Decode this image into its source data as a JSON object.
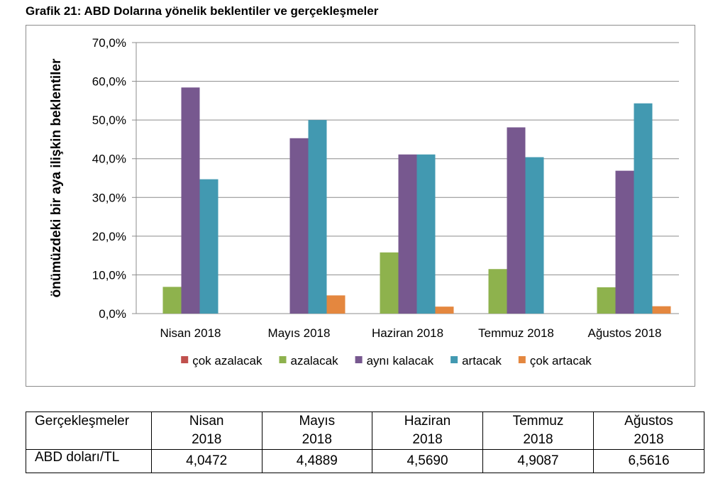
{
  "title": "Grafik 21: ABD Dolarına yönelik beklentiler ve gerçekleşmeler",
  "chart_data": {
    "type": "bar",
    "title": "Grafik 21: ABD Dolarına yönelik beklentiler ve gerçekleşmeler",
    "xlabel": "",
    "ylabel": "önümüzdeki bir aya ilişkin beklentiler",
    "ylim": [
      0,
      70
    ],
    "yticks": [
      "0,0%",
      "10,0%",
      "20,0%",
      "30,0%",
      "40,0%",
      "50,0%",
      "60,0%",
      "70,0%"
    ],
    "categories": [
      "Nisan 2018",
      "Mayıs 2018",
      "Haziran 2018",
      "Temmuz 2018",
      "Ağustos 2018"
    ],
    "grid": true,
    "legend_position": "bottom",
    "series": [
      {
        "name": "çok azalacak",
        "color": "#c0504d",
        "values": [
          0,
          0,
          0,
          0,
          0
        ]
      },
      {
        "name": "azalacak",
        "color": "#8eb24d",
        "values": [
          6.9,
          0,
          15.8,
          11.5,
          6.8
        ]
      },
      {
        "name": "aynı kalacak",
        "color": "#77588f",
        "values": [
          58.4,
          45.3,
          41.1,
          48.1,
          36.9
        ]
      },
      {
        "name": "artacak",
        "color": "#4299b1",
        "values": [
          34.7,
          50.0,
          41.1,
          40.4,
          54.3
        ]
      },
      {
        "name": "çok artacak",
        "color": "#e4873f",
        "values": [
          0,
          4.7,
          1.8,
          0,
          1.9
        ]
      }
    ]
  },
  "table": {
    "header": [
      "Gerçekleşmeler",
      "Nisan 2018",
      "Mayıs 2018",
      "Haziran 2018",
      "Temmuz 2018",
      "Ağustos 2018"
    ],
    "row_label": "ABD doları/TL",
    "values": [
      "4,0472",
      "4,4889",
      "4,5690",
      "4,9087",
      "6,5616"
    ]
  }
}
